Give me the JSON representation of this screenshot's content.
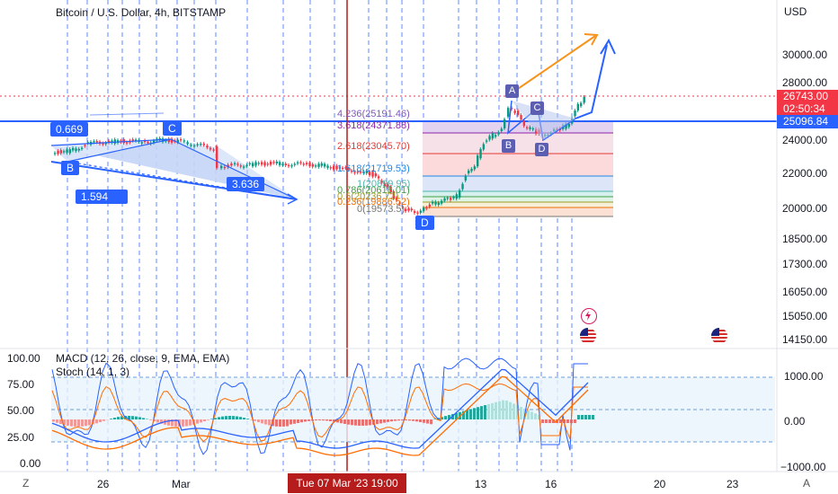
{
  "header": {
    "title": "Bitcoin / U.S. Dollar, 4h, BITSTAMP",
    "currency": "USD"
  },
  "price_axis": [
    "30000.00",
    "28000.00",
    "24000.00",
    "22000.00",
    "20000.00",
    "18500.00",
    "17300.00",
    "16050.00",
    "15050.00",
    "14150.00"
  ],
  "price_tags": {
    "last_price": "26743.00",
    "countdown": "02:50:34",
    "level": "25096.84",
    "last_color": "#f23645",
    "level_color": "#2962ff"
  },
  "fib_labels": [
    "4.236(25191.46)",
    "3.618(24371.88)",
    "2.618(23045.70)",
    "1.618(21719.53)",
    "1(20899.95)",
    "0.786(20616.01)",
    "0.5(20236.72)",
    "0.236(19886.52)",
    "0(19573.5)"
  ],
  "pattern_labels": {
    "left": [
      "B",
      "C",
      "D"
    ],
    "right": [
      "A",
      "B",
      "C",
      "D"
    ]
  },
  "ratio_labels": [
    "0.669",
    "1.594",
    "3.636"
  ],
  "indicators": {
    "macd": "MACD (12, 26, close, 9, EMA, EMA)",
    "stoch": "Stoch (14, 1, 3)",
    "stoch_axis": [
      "100.00",
      "75.00",
      "50.00",
      "25.00",
      "0.00"
    ],
    "macd_axis": [
      "1000.00",
      "0.00",
      "−1000.00"
    ]
  },
  "time_axis": {
    "labels": [
      "26",
      "Mar",
      "13",
      "16",
      "20",
      "23"
    ],
    "cursor": "Tue 07 Mar '23  19:00"
  },
  "corner": {
    "left": "Z",
    "right": "A"
  },
  "event_icons": [
    "lightning-event-icon",
    "us-flag-event-icon",
    "us-flag-event-icon"
  ]
}
